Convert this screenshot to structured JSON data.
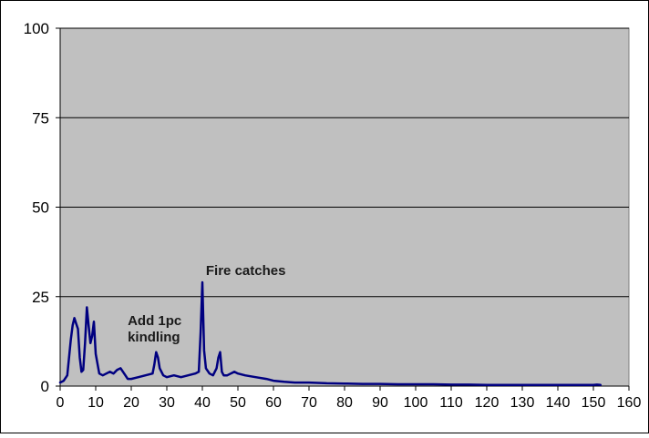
{
  "chart_data": {
    "type": "line",
    "title": "",
    "xlabel": "",
    "ylabel": "",
    "xlim": [
      0,
      160
    ],
    "ylim": [
      0,
      100
    ],
    "x_ticks": [
      0,
      10,
      20,
      30,
      40,
      50,
      60,
      70,
      80,
      90,
      100,
      110,
      120,
      130,
      140,
      150,
      160
    ],
    "y_ticks": [
      0,
      25,
      50,
      75,
      100
    ],
    "grid": "horizontal",
    "legend": "none",
    "colors": {
      "plot_background": "#c0c0c0",
      "line": "#000080",
      "gridline": "#000000"
    },
    "series": [
      {
        "x": [
          0,
          1,
          2,
          3,
          3.5,
          4,
          4.5,
          5,
          5.5,
          6,
          6.5,
          7,
          7.5,
          8,
          8.5,
          9,
          9.5,
          10,
          11,
          12,
          13,
          14,
          15,
          16,
          17,
          18,
          19,
          20,
          22,
          24,
          26,
          26.5,
          27,
          27.5,
          28,
          29,
          30,
          32,
          34,
          36,
          38,
          39,
          39.5,
          40,
          40.5,
          41,
          42,
          43,
          44,
          44.5,
          45,
          45.5,
          46,
          47,
          48,
          49,
          50,
          52,
          55,
          58,
          60,
          63,
          66,
          70,
          75,
          80,
          85,
          90,
          95,
          100,
          105,
          110,
          115,
          120,
          125,
          130,
          135,
          140,
          145,
          150,
          151,
          152
        ],
        "y": [
          1,
          1.5,
          3,
          13,
          17,
          19,
          17.5,
          16,
          8,
          4,
          4.5,
          12,
          22,
          17,
          12,
          14,
          18,
          9,
          3.5,
          3,
          3.5,
          4,
          3.5,
          4.5,
          5,
          3.5,
          2,
          2,
          2.5,
          3,
          3.5,
          6,
          9.5,
          8,
          5,
          3,
          2.5,
          3,
          2.5,
          3,
          3.5,
          4,
          15,
          29,
          10,
          5,
          3.5,
          3,
          5,
          8,
          9.5,
          4,
          3,
          3,
          3.5,
          4,
          3.5,
          3,
          2.5,
          2,
          1.5,
          1.2,
          1,
          1,
          0.8,
          0.7,
          0.6,
          0.6,
          0.5,
          0.5,
          0.5,
          0.4,
          0.4,
          0.3,
          0.3,
          0.3,
          0.3,
          0.3,
          0.3,
          0.3,
          0.4,
          0.3
        ]
      }
    ],
    "annotations": [
      {
        "lines": [
          "Fire catches"
        ],
        "x": 41,
        "y": 31
      },
      {
        "lines": [
          "Add 1pc",
          "kindling"
        ],
        "x": 19,
        "y": 17
      }
    ]
  }
}
